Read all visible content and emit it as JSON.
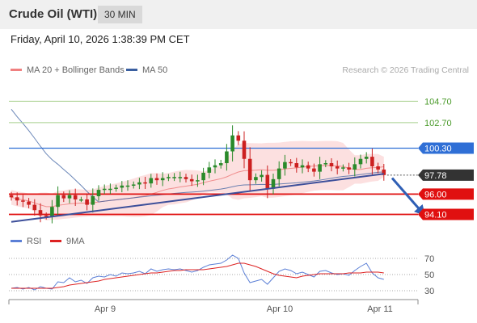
{
  "header": {
    "title": "Crude Oil (WTI)",
    "timeframe": "30 MIN"
  },
  "timestamp": "Friday, April 10, 2026 1:38:39 PM CET",
  "colors": {
    "accent_blue": "#2f6fd6",
    "support_red": "#e01010",
    "resistance_green": "#a8d08d",
    "candle_up": "#2a8a2a",
    "candle_down": "#cc2020",
    "ma50": "#3a5fa0",
    "rsi": "#5b7fd6",
    "rsi_ma": "#dd2222"
  },
  "chart_data": [
    {
      "type": "candlestick",
      "legend": [
        {
          "label": "MA 20 + Bollinger Bands",
          "color": "#f08080"
        },
        {
          "label": "MA 50",
          "color": "#3a5fa0"
        }
      ],
      "watermark": "Research © 2026 Trading Central",
      "x_labels": [
        "Apr 9",
        "Apr 10",
        "Apr 11"
      ],
      "ylim": [
        93.0,
        107.0
      ],
      "resistance_levels": [
        104.7,
        102.7
      ],
      "pivot": 100.3,
      "last_price": 97.78,
      "support_levels": [
        96.0,
        94.1
      ],
      "level_labels": {
        "r2": "104.70",
        "r1": "102.70",
        "pivot": "100.30",
        "last": "97.78",
        "s1": "96.00",
        "s2": "94.10"
      },
      "trendline": [
        [
          0,
          93.4
        ],
        [
          64,
          97.9
        ]
      ],
      "forecast_arrow": [
        [
          65,
          97.5
        ],
        [
          70,
          94.3
        ]
      ],
      "closes": [
        95.7,
        95.4,
        95.3,
        95.0,
        94.5,
        94.0,
        93.9,
        94.8,
        95.9,
        95.6,
        95.9,
        95.5,
        95.5,
        95.0,
        95.8,
        96.4,
        96.5,
        96.5,
        96.6,
        96.8,
        96.8,
        96.9,
        97.1,
        97.0,
        97.5,
        97.3,
        97.5,
        97.6,
        97.6,
        97.6,
        97.4,
        97.2,
        97.3,
        98.0,
        98.5,
        98.7,
        98.9,
        100.0,
        101.5,
        101.0,
        99.3,
        97.3,
        97.6,
        97.8,
        96.5,
        97.4,
        98.4,
        99.0,
        98.9,
        98.5,
        98.7,
        98.4,
        98.1,
        98.8,
        98.9,
        98.6,
        98.4,
        98.5,
        98.3,
        98.8,
        99.3,
        99.5,
        98.6,
        98.3,
        97.78
      ]
    },
    {
      "type": "line",
      "legend": [
        {
          "label": "RSI",
          "color": "#5b7fd6"
        },
        {
          "label": "9MA",
          "color": "#dd2222"
        }
      ],
      "y_ticks": [
        70,
        50,
        30
      ],
      "ylim": [
        20,
        80
      ],
      "rsi": [
        33,
        34,
        32,
        34,
        31,
        35,
        33,
        32,
        41,
        40,
        46,
        41,
        43,
        39,
        46,
        48,
        47,
        50,
        48,
        52,
        51,
        52,
        54,
        51,
        57,
        54,
        56,
        57,
        56,
        57,
        55,
        53,
        55,
        59,
        62,
        63,
        64,
        68,
        74,
        70,
        52,
        40,
        42,
        44,
        38,
        46,
        54,
        57,
        55,
        51,
        53,
        50,
        47,
        54,
        55,
        52,
        50,
        51,
        49,
        55,
        60,
        64,
        52,
        46,
        44
      ],
      "rsi_ma": [
        33,
        33,
        33,
        33,
        33,
        33,
        33,
        33,
        34,
        35,
        37,
        38,
        39,
        40,
        41,
        42,
        44,
        45,
        46,
        47,
        48,
        49,
        50,
        51,
        52,
        52,
        53,
        54,
        55,
        55,
        56,
        56,
        56,
        56,
        57,
        58,
        59,
        60,
        62,
        64,
        64,
        62,
        60,
        57,
        54,
        51,
        49,
        48,
        47,
        46,
        48,
        49,
        50,
        51,
        51,
        51,
        51,
        51,
        52,
        52,
        52,
        53,
        53,
        53,
        52
      ]
    }
  ]
}
